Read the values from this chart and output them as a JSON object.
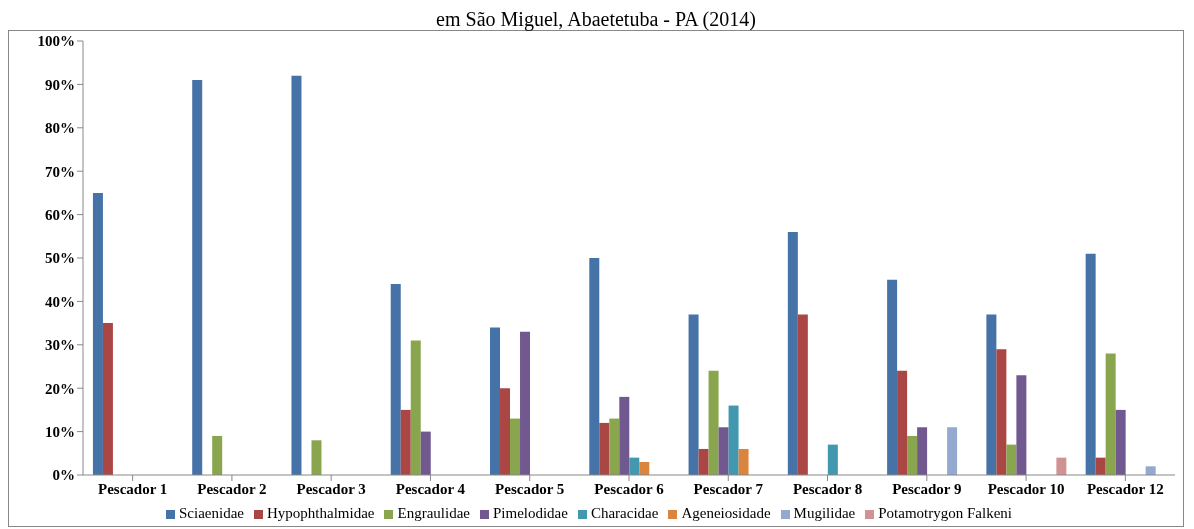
{
  "chart_data": {
    "type": "bar",
    "title": "em São Miguel, Abaetetuba - PA (2014)",
    "categories": [
      "Pescador 1",
      "Pescador 2",
      "Pescador 3",
      "Pescador 4",
      "Pescador 5",
      "Pescador 6",
      "Pescador 7",
      "Pescador 8",
      "Pescador 9",
      "Pescador 10",
      "Pescador 12"
    ],
    "series": [
      {
        "name": "Sciaenidae",
        "color": "#4572a7",
        "values": [
          65,
          91,
          92,
          44,
          34,
          50,
          37,
          56,
          45,
          37,
          51
        ]
      },
      {
        "name": "Hypophthalmidae",
        "color": "#aa4643",
        "values": [
          35,
          null,
          null,
          15,
          20,
          12,
          6,
          37,
          24,
          29,
          4
        ]
      },
      {
        "name": "Engraulidae",
        "color": "#89a54e",
        "values": [
          null,
          9,
          8,
          31,
          13,
          13,
          24,
          null,
          9,
          7,
          28
        ]
      },
      {
        "name": "Pimelodidae",
        "color": "#71588f",
        "values": [
          null,
          null,
          null,
          10,
          33,
          18,
          11,
          null,
          11,
          23,
          15
        ]
      },
      {
        "name": "Characidae",
        "color": "#4198af",
        "values": [
          null,
          null,
          null,
          null,
          null,
          4,
          16,
          7,
          null,
          null,
          null
        ]
      },
      {
        "name": "Ageneiosidade",
        "color": "#db843d",
        "values": [
          null,
          null,
          null,
          null,
          null,
          3,
          6,
          null,
          null,
          null,
          null
        ]
      },
      {
        "name": "Mugilidae",
        "color": "#93a9cf",
        "values": [
          null,
          null,
          null,
          null,
          null,
          null,
          null,
          null,
          11,
          null,
          2
        ]
      },
      {
        "name": "Potamotrygon Falkeni",
        "color": "#d19392",
        "values": [
          null,
          null,
          null,
          null,
          null,
          null,
          null,
          null,
          null,
          4,
          null
        ]
      }
    ],
    "ylim": [
      0,
      100
    ],
    "yticks": [
      {
        "value": 0,
        "label": "0%"
      },
      {
        "value": 10,
        "label": "10%"
      },
      {
        "value": 20,
        "label": "20%"
      },
      {
        "value": 30,
        "label": "30%"
      },
      {
        "value": 40,
        "label": "40%"
      },
      {
        "value": 50,
        "label": "50%"
      },
      {
        "value": 60,
        "label": "60%"
      },
      {
        "value": 70,
        "label": "70%"
      },
      {
        "value": 80,
        "label": "80%"
      },
      {
        "value": 90,
        "label": "90%"
      },
      {
        "value": 100,
        "label": "100%"
      }
    ],
    "grid": false,
    "legend": "bottom"
  }
}
